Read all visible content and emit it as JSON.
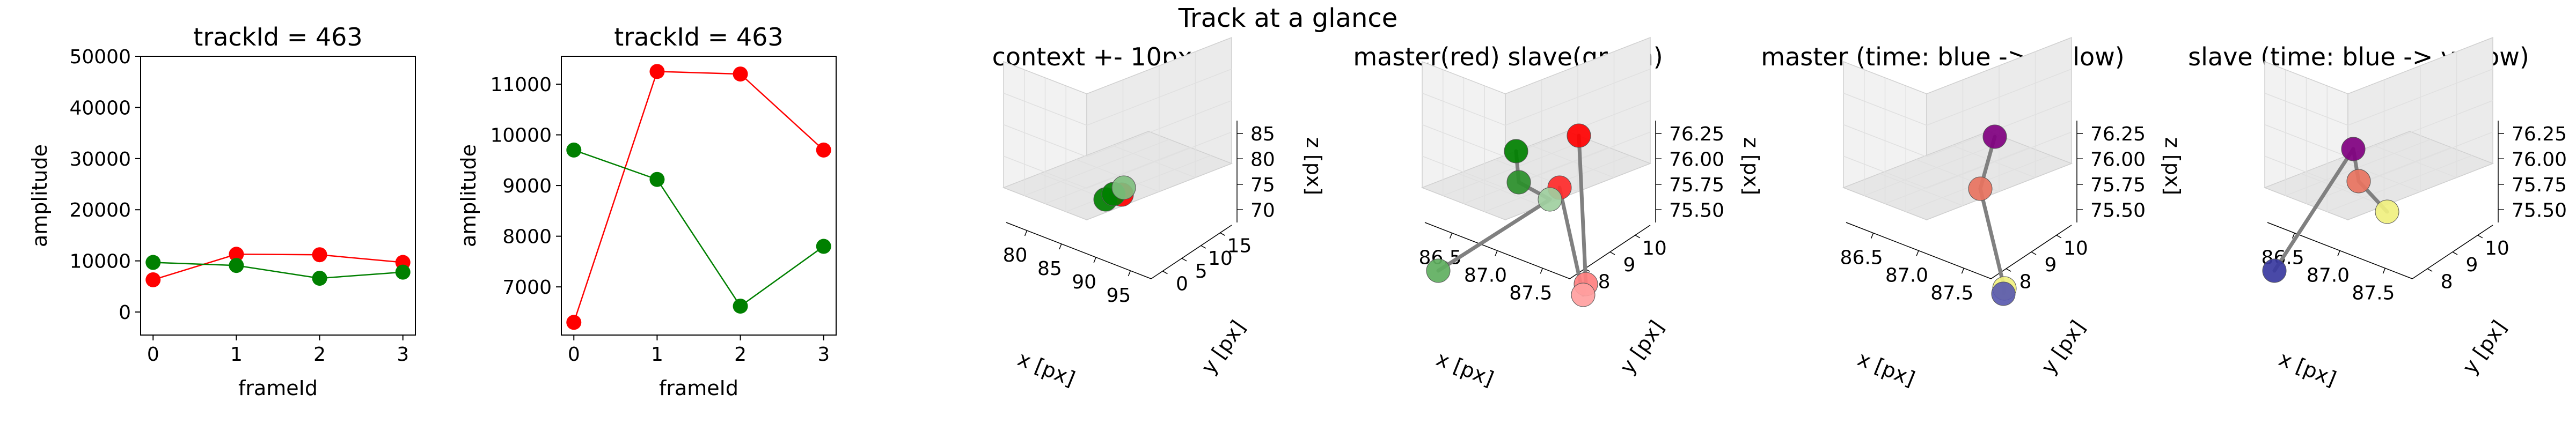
{
  "figure": {
    "suptitle": "Track at a glance"
  },
  "chart_data": [
    {
      "type": "line",
      "title": "trackId = 463",
      "xlabel": "frameId",
      "ylabel": "amplitude",
      "x": [
        0,
        1,
        2,
        3
      ],
      "x_ticks": [
        "0",
        "1",
        "2",
        "3"
      ],
      "y_ticks": [
        "0",
        "10000",
        "20000",
        "30000",
        "40000",
        "50000"
      ],
      "xlim": [
        -0.15,
        3.15
      ],
      "ylim": [
        -4500,
        50000
      ],
      "series": [
        {
          "color": "#ff0000",
          "values": [
            6300,
            11300,
            11200,
            9700
          ]
        },
        {
          "color": "#008000",
          "values": [
            9700,
            9100,
            6600,
            7800
          ]
        }
      ]
    },
    {
      "type": "line",
      "title": "trackId = 463",
      "xlabel": "frameId",
      "ylabel": "amplitude",
      "x": [
        0,
        1,
        2,
        3
      ],
      "x_ticks": [
        "0",
        "1",
        "2",
        "3"
      ],
      "y_ticks": [
        "7000",
        "8000",
        "9000",
        "10000",
        "11000"
      ],
      "xlim": [
        -0.15,
        3.15
      ],
      "ylim": [
        6050,
        11550
      ],
      "series": [
        {
          "color": "#ff0000",
          "values": [
            6300,
            11250,
            11200,
            9700
          ]
        },
        {
          "color": "#008000",
          "values": [
            9700,
            9120,
            6620,
            7800
          ]
        }
      ]
    },
    {
      "type": "scatter3d",
      "title": "context +- 10px",
      "xlabel": "x [px]",
      "ylabel": "y [px]",
      "zlabel": "z [px]",
      "x_ticks": [
        "80",
        "85",
        "90",
        "95"
      ],
      "y_ticks": [
        "0",
        "5",
        "10",
        "15"
      ],
      "z_ticks": [
        "70",
        "75",
        "80",
        "85"
      ],
      "points": [
        {
          "x": 87.0,
          "y": 9.0,
          "z": 76.0,
          "color": "#ff0000"
        },
        {
          "x": 86.5,
          "y": 8.5,
          "z": 75.8,
          "color": "#008000"
        },
        {
          "x": 87.2,
          "y": 9.3,
          "z": 75.9,
          "color": "#008000"
        },
        {
          "x": 87.4,
          "y": 9.6,
          "z": 76.1,
          "color": "#7fbf7f"
        }
      ]
    },
    {
      "type": "scatter3d",
      "title": "master(red) slave(green)",
      "xlabel": "x [px]",
      "ylabel": "y [px]",
      "zlabel": "z [px]",
      "x_ticks": [
        "86.5",
        "87.0",
        "87.5"
      ],
      "y_ticks": [
        "8",
        "9",
        "10"
      ],
      "z_ticks": [
        "75.50",
        "75.75",
        "76.00",
        "76.25"
      ],
      "points": [
        {
          "x": 87.4,
          "y": 9.7,
          "z": 76.05,
          "color": "#ff0000"
        },
        {
          "x": 87.3,
          "y": 9.4,
          "z": 75.8,
          "color": "#ff2a2a"
        },
        {
          "x": 87.5,
          "y": 8.2,
          "z": 75.35,
          "color": "#ff7f7f"
        },
        {
          "x": 87.5,
          "y": 8.1,
          "z": 75.3,
          "color": "#ff9f9f"
        },
        {
          "x": 86.9,
          "y": 9.9,
          "z": 76.0,
          "color": "#008000"
        },
        {
          "x": 87.0,
          "y": 9.6,
          "z": 75.85,
          "color": "#2a8f2a"
        },
        {
          "x": 87.2,
          "y": 9.5,
          "z": 75.7,
          "color": "#9fcf9f"
        },
        {
          "x": 86.5,
          "y": 8.2,
          "z": 75.45,
          "color": "#5faf5f"
        }
      ]
    },
    {
      "type": "scatter3d",
      "title": "master (time: blue -> yellow)",
      "xlabel": "x [px]",
      "ylabel": "y [px]",
      "zlabel": "z [px]",
      "x_ticks": [
        "86.5",
        "87.0",
        "87.5"
      ],
      "y_ticks": [
        "8",
        "9",
        "10"
      ],
      "z_ticks": [
        "75.50",
        "75.75",
        "76.00",
        "76.25"
      ],
      "points": [
        {
          "x": 87.4,
          "y": 9.7,
          "z": 76.1,
          "color": "#800080"
        },
        {
          "x": 87.3,
          "y": 9.4,
          "z": 75.8,
          "color": "#e8735f"
        },
        {
          "x": 87.5,
          "y": 8.2,
          "z": 75.35,
          "color": "#f0f07f"
        },
        {
          "x": 87.5,
          "y": 8.1,
          "z": 75.3,
          "color": "#5a5aaf"
        }
      ]
    },
    {
      "type": "scatter3d",
      "title": "slave (time: blue -> yellow)",
      "xlabel": "x [px]",
      "ylabel": "y [px]",
      "zlabel": "z [px]",
      "x_ticks": [
        "86.5",
        "87.0",
        "87.5"
      ],
      "y_ticks": [
        "8",
        "9",
        "10"
      ],
      "z_ticks": [
        "75.50",
        "75.75",
        "76.00",
        "76.25"
      ],
      "points": [
        {
          "x": 86.9,
          "y": 9.9,
          "z": 76.05,
          "color": "#800080"
        },
        {
          "x": 87.0,
          "y": 9.6,
          "z": 75.85,
          "color": "#e8735f"
        },
        {
          "x": 87.2,
          "y": 9.5,
          "z": 75.7,
          "color": "#f0f07f"
        },
        {
          "x": 86.5,
          "y": 8.2,
          "z": 75.45,
          "color": "#3a3a9f"
        }
      ]
    }
  ]
}
